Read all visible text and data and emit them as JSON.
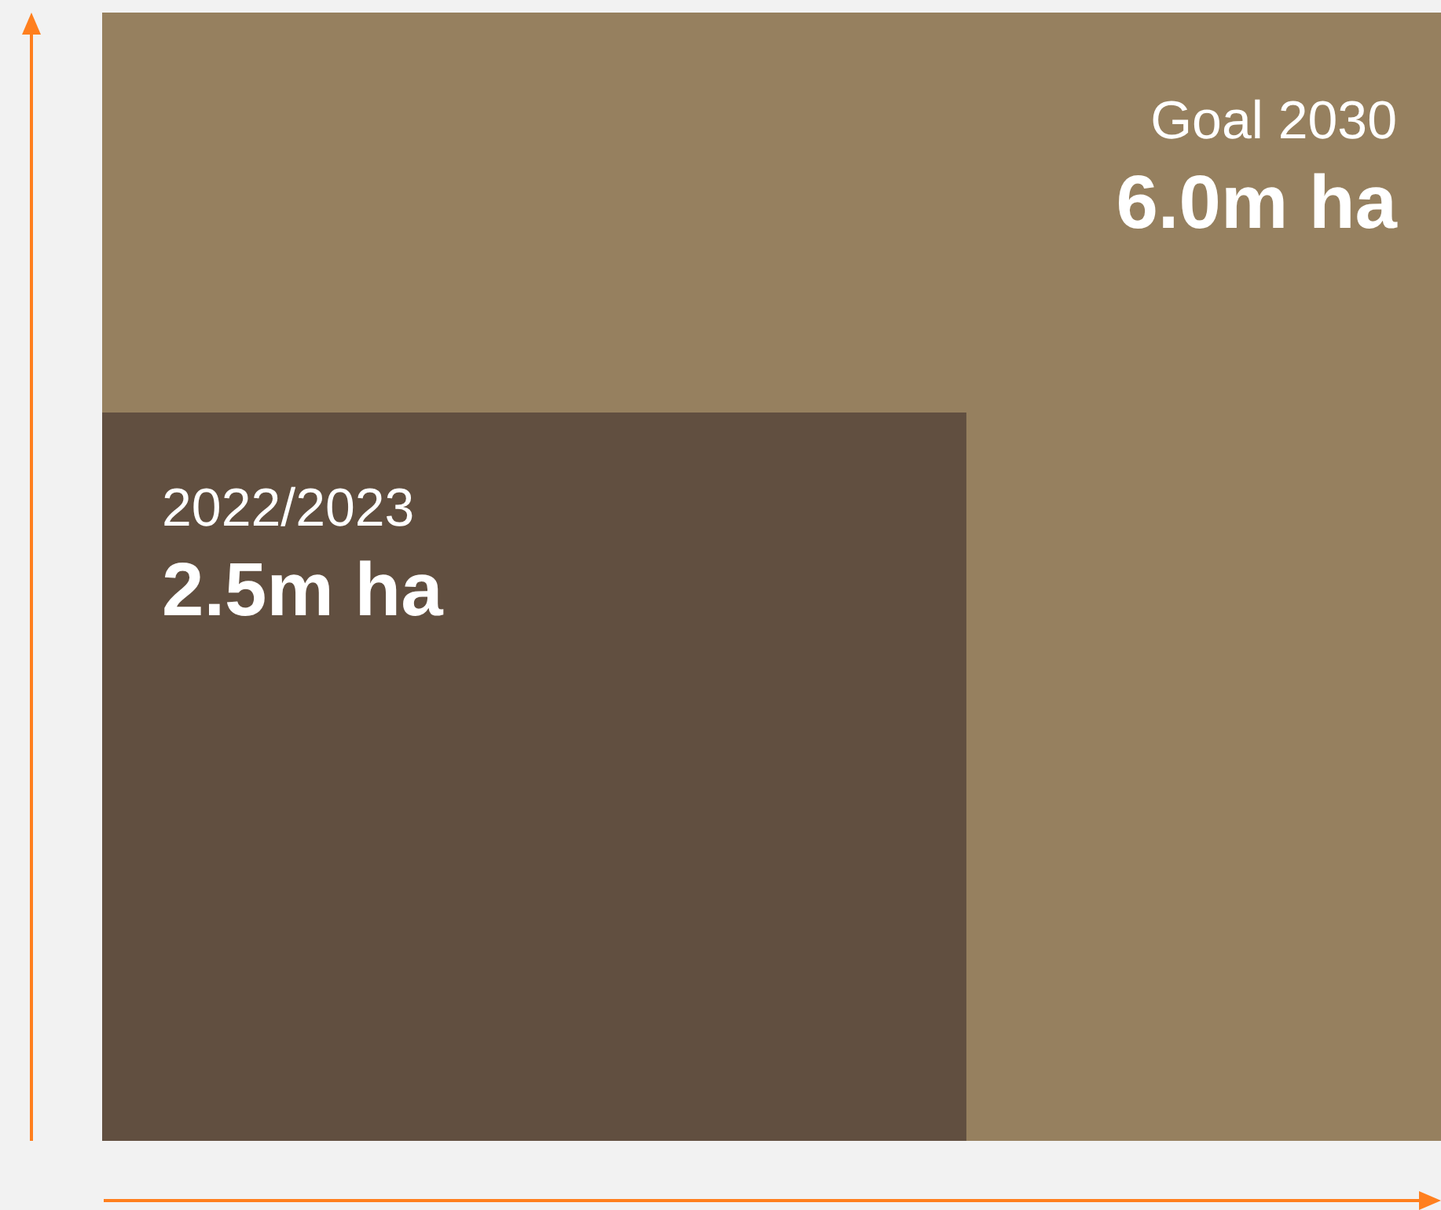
{
  "chart_data": {
    "type": "other",
    "categories": [
      "2022/2023",
      "Goal 2030"
    ],
    "values": [
      2.5,
      6.0
    ],
    "value_labels": [
      "2.5m ha",
      "6.0m ha"
    ],
    "colors": [
      "#614f40",
      "#96805f"
    ]
  }
}
